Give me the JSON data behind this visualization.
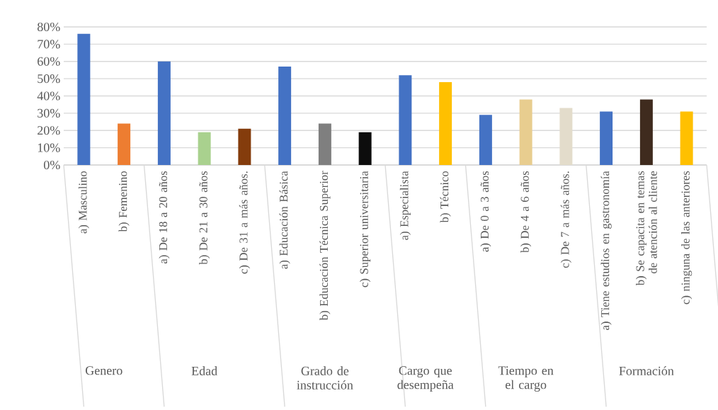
{
  "chart_data": {
    "type": "bar",
    "categories": [
      "a) Masculino",
      "b) Femenino",
      "a) De 18 a 20 años",
      "b) De 21 a 30 años",
      "c) De 31 a más años.",
      "a) Educación Básica",
      "b) Educación Técnica Superior",
      "c) Superior universitaria",
      "a) Especialista",
      "b) Técnico",
      "a) De 0 a 3 años",
      "b) De 4 a 6 años",
      "c) De 7 a más años.",
      "a) Tiene estudios en gastronomía",
      "b) Se capacita en temas de atención al cliente",
      "c) ninguna de las anteriores"
    ],
    "values": [
      76,
      24,
      60,
      19,
      21,
      57,
      24,
      19,
      52,
      48,
      29,
      38,
      33,
      31,
      38,
      31
    ],
    "colors": [
      "#4472c4",
      "#ed7d31",
      "#4472c4",
      "#a9d18e",
      "#843c0c",
      "#4472c4",
      "#7f7f7f",
      "#0d0d0d",
      "#4472c4",
      "#ffc000",
      "#4472c4",
      "#e8cd8f",
      "#e3dccb",
      "#4472c4",
      "#3f2b1e",
      "#ffc000"
    ],
    "ylim": [
      0,
      80
    ],
    "yticks": [
      {
        "value": 0,
        "label": "0%"
      },
      {
        "value": 10,
        "label": "10%"
      },
      {
        "value": 20,
        "label": "20%"
      },
      {
        "value": 30,
        "label": "30%"
      },
      {
        "value": 40,
        "label": "40%"
      },
      {
        "value": 50,
        "label": "50%"
      },
      {
        "value": 60,
        "label": "60%"
      },
      {
        "value": 70,
        "label": "70%"
      },
      {
        "value": 80,
        "label": "80%"
      }
    ],
    "grid": "y",
    "annotations": [
      "Genero",
      "Edad",
      "Grado de instrucción",
      "Cargo que desempeña",
      "Tiempo en el cargo",
      "Formación"
    ]
  }
}
